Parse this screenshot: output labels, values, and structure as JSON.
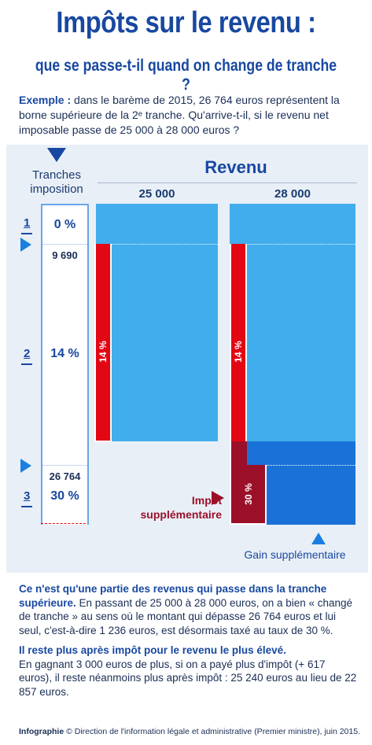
{
  "header": {
    "title": "Impôts sur le revenu :",
    "subtitle": "que se passe-t-il quand on change de tranche ?"
  },
  "example": {
    "label": "Exemple :",
    "text": "dans le barème de 2015, 26 764 euros représentent la borne supérieure de la 2ᵉ tranche. Qu'arrive-t-il, si le revenu net imposable passe de 25 000 à 28 000 euros ?"
  },
  "diagram": {
    "tranches_label_1": "Tranches",
    "tranches_label_2": "imposition",
    "revenu_label": "Revenu",
    "col1_head": "25 000",
    "col2_head": "28 000",
    "tranches": [
      {
        "num": "1",
        "rate": "0 %"
      },
      {
        "num": "2",
        "rate": "14 %"
      },
      {
        "num": "3",
        "rate": "30 %"
      }
    ],
    "bound1": "9 690",
    "bound2": "26 764",
    "bar_rate_14": "14 %",
    "bar_rate_30": "30 %",
    "impot_supp_1": "Impôt",
    "impot_supp_2": "supplémentaire",
    "gain_supp": "Gain supplémentaire",
    "colors": {
      "blue_light": "#42adec",
      "blue_dark": "#1a72d8",
      "red": "#e30613",
      "dark_red": "#9b0f28",
      "navy": "#1848a0"
    }
  },
  "notes": {
    "p1_bold": "Ce n'est qu'une partie des revenus qui passe dans la tranche supérieure.",
    "p1_text": " En passant de 25 000 à 28 000 euros, on a bien « changé de tranche » au sens où le montant qui dépasse 26 764 euros et lui seul, c'est-à-dire 1 236 euros, est désormais taxé au taux de 30 %.",
    "p2_bold": "Il reste plus après impôt pour le revenu le plus élevé.",
    "p2_text": "En gagnant 3 000 euros de plus, si on a payé plus d'impôt (+ 617 euros), il reste néanmoins plus après impôt : 25 240 euros au lieu de 22 857 euros."
  },
  "credit": {
    "label": "Infographie",
    "text": " © Direction de l'information légale et administrative (Premier ministre), juin 2015."
  }
}
